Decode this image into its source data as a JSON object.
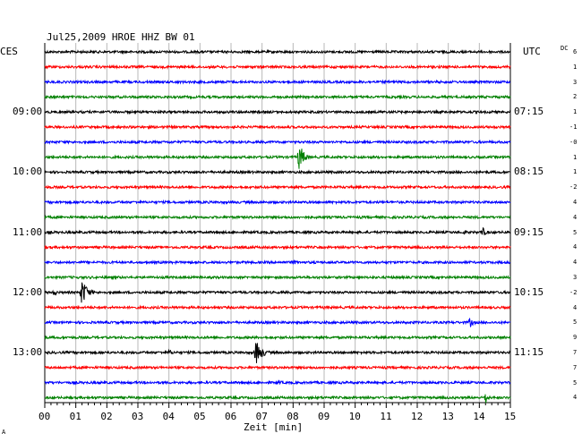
{
  "header": {
    "title": "Jul25,2009   HROE HHZ BW 01",
    "left_tz": "CES",
    "right_tz": "UTC",
    "dc_label": "DC"
  },
  "x_axis": {
    "label": "Zeit [min]",
    "ticks": [
      "00",
      "01",
      "02",
      "03",
      "04",
      "05",
      "06",
      "07",
      "08",
      "09",
      "10",
      "11",
      "12",
      "13",
      "14",
      "15"
    ],
    "range": [
      0,
      15
    ]
  },
  "trace_colors": [
    "#000000",
    "#ff0000",
    "#0000ff",
    "#008000"
  ],
  "traces_count": 24,
  "left_time_labels": [
    {
      "row": 4,
      "text": "09:00"
    },
    {
      "row": 8,
      "text": "10:00"
    },
    {
      "row": 12,
      "text": "11:00"
    },
    {
      "row": 16,
      "text": "12:00"
    },
    {
      "row": 20,
      "text": "13:00"
    }
  ],
  "right_time_labels": [
    {
      "row": 4,
      "text": "07:15"
    },
    {
      "row": 8,
      "text": "08:15"
    },
    {
      "row": 12,
      "text": "09:15"
    },
    {
      "row": 16,
      "text": "10:15"
    },
    {
      "row": 20,
      "text": "11:15"
    }
  ],
  "dc_values": [
    "6",
    "1",
    "3",
    "2",
    "1",
    "-1",
    "-0",
    "1",
    "1",
    "-2",
    "4",
    "4",
    "5",
    "4",
    "4",
    "3",
    "-2",
    "4",
    "5",
    "9",
    "7",
    "7",
    "5",
    "4"
  ],
  "events": [
    {
      "row": 7,
      "minute": 8.2,
      "amp": 16,
      "width": 0.6
    },
    {
      "row": 12,
      "minute": 14.1,
      "amp": 6,
      "width": 0.5
    },
    {
      "row": 12,
      "minute": 13.5,
      "amp": 3,
      "width": 0.5
    },
    {
      "row": 16,
      "minute": 1.2,
      "amp": 16,
      "width": 0.7
    },
    {
      "row": 16,
      "minute": 0.3,
      "amp": 4,
      "width": 0.5
    },
    {
      "row": 14,
      "minute": 8.0,
      "amp": 3,
      "width": 1.0
    },
    {
      "row": 17,
      "minute": 9.0,
      "amp": 2,
      "width": 1.0
    },
    {
      "row": 18,
      "minute": 13.7,
      "amp": 6,
      "width": 0.5
    },
    {
      "row": 20,
      "minute": 6.8,
      "amp": 14,
      "width": 0.8
    },
    {
      "row": 20,
      "minute": 4.0,
      "amp": 3,
      "width": 0.9
    },
    {
      "row": 23,
      "minute": 14.2,
      "amp": 7,
      "width": 0.4
    },
    {
      "row": 22,
      "minute": 7.5,
      "amp": 3,
      "width": 0.8
    }
  ],
  "footnote": "A"
}
